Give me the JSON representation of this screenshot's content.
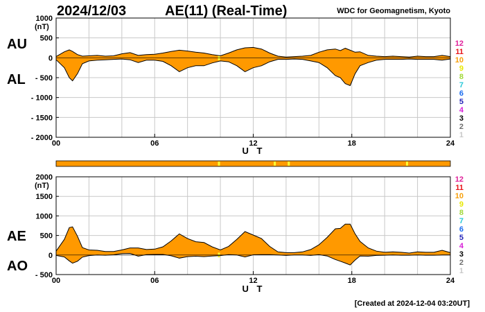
{
  "header": {
    "date": "2024/12/03",
    "title": "AE(11) (Real-Time)",
    "source": "WDC for Geomagnetism, Kyoto",
    "created": "[Created at 2024-12-04 03:20UT]"
  },
  "scale": {
    "entries": [
      {
        "label": "12",
        "color": "#e0209a"
      },
      {
        "label": "11",
        "color": "#e8141a"
      },
      {
        "label": "10",
        "color": "#f7a00c"
      },
      {
        "label": "9",
        "color": "#e8e800"
      },
      {
        "label": "8",
        "color": "#a0d838"
      },
      {
        "label": "7",
        "color": "#28c8d8"
      },
      {
        "label": "6",
        "color": "#1a6cf0"
      },
      {
        "label": "5",
        "color": "#2424b8"
      },
      {
        "label": "4",
        "color": "#d820d8"
      },
      {
        "label": "3",
        "color": "#000000"
      },
      {
        "label": "2",
        "color": "#6e6e6e"
      },
      {
        "label": "1",
        "color": "#c8c8c8"
      }
    ]
  },
  "colors": {
    "fill": "#ff9900",
    "gap": "#ffff33",
    "grid": "#c8c8c8"
  },
  "chart_data": [
    {
      "type": "area",
      "name": "AU/AL",
      "upper_series": "AU",
      "lower_series": "AL",
      "unit_label": "(nT)",
      "xlabel": "U T",
      "x_ticks": [
        "00",
        "06",
        "12",
        "18",
        "24"
      ],
      "y_ticks": [
        "1000",
        "500",
        "0",
        "- 500",
        "- 1000",
        "- 1500",
        "- 2000"
      ],
      "xlim": [
        0,
        24
      ],
      "ylim": [
        -2000,
        1000
      ],
      "gaps": [
        9.85,
        9.95
      ],
      "hours": [
        0.0,
        0.5,
        0.8,
        1.0,
        1.3,
        1.6,
        2.0,
        2.5,
        3.0,
        3.5,
        4.0,
        4.5,
        5.0,
        5.5,
        6.0,
        6.5,
        7.0,
        7.5,
        8.0,
        8.5,
        9.0,
        9.5,
        10.0,
        10.5,
        11.0,
        11.5,
        12.0,
        12.5,
        13.0,
        13.5,
        14.0,
        14.5,
        15.0,
        15.5,
        16.0,
        16.5,
        17.0,
        17.3,
        17.6,
        17.9,
        18.2,
        18.5,
        19.0,
        19.5,
        20.0,
        20.5,
        21.0,
        21.5,
        22.0,
        22.5,
        23.0,
        23.5,
        24.0
      ],
      "AU": [
        30,
        150,
        200,
        160,
        80,
        40,
        50,
        60,
        40,
        50,
        100,
        130,
        60,
        80,
        90,
        120,
        160,
        190,
        170,
        140,
        120,
        80,
        50,
        120,
        200,
        250,
        260,
        220,
        120,
        40,
        20,
        30,
        40,
        60,
        140,
        200,
        220,
        180,
        240,
        190,
        140,
        150,
        60,
        40,
        30,
        40,
        30,
        20,
        40,
        30,
        30,
        60,
        30
      ],
      "AL": [
        -50,
        -250,
        -500,
        -580,
        -400,
        -150,
        -80,
        -60,
        -50,
        -40,
        -30,
        -50,
        -120,
        -60,
        -60,
        -90,
        -200,
        -350,
        -250,
        -200,
        -200,
        -130,
        -80,
        -100,
        -200,
        -350,
        -250,
        -200,
        -100,
        -40,
        -40,
        -30,
        -40,
        -80,
        -120,
        -250,
        -450,
        -500,
        -650,
        -700,
        -400,
        -200,
        -120,
        -60,
        -40,
        -40,
        -40,
        -30,
        -40,
        -40,
        -40,
        -60,
        -30
      ]
    },
    {
      "type": "area",
      "name": "AE/AO",
      "upper_series": "AE",
      "lower_series": "AO",
      "unit_label": "(nT)",
      "xlabel": "U T",
      "x_ticks": [
        "00",
        "06",
        "12",
        "18",
        "24"
      ],
      "y_ticks": [
        "2000",
        "1500",
        "1000",
        "500",
        "0",
        "- 500"
      ],
      "xlim": [
        0,
        24
      ],
      "ylim": [
        -500,
        2000
      ],
      "gaps": [
        9.85,
        9.95
      ],
      "hours": [
        0.0,
        0.5,
        0.8,
        1.0,
        1.3,
        1.6,
        2.0,
        2.5,
        3.0,
        3.5,
        4.0,
        4.5,
        5.0,
        5.5,
        6.0,
        6.5,
        7.0,
        7.5,
        8.0,
        8.5,
        9.0,
        9.5,
        10.0,
        10.5,
        11.0,
        11.5,
        12.0,
        12.5,
        13.0,
        13.5,
        14.0,
        14.5,
        15.0,
        15.5,
        16.0,
        16.5,
        17.0,
        17.3,
        17.6,
        17.9,
        18.2,
        18.5,
        19.0,
        19.5,
        20.0,
        20.5,
        21.0,
        21.5,
        22.0,
        22.5,
        23.0,
        23.5,
        24.0
      ],
      "AE": [
        100,
        400,
        700,
        720,
        480,
        190,
        130,
        120,
        90,
        90,
        130,
        180,
        180,
        140,
        150,
        210,
        360,
        540,
        420,
        340,
        320,
        210,
        130,
        220,
        400,
        600,
        510,
        420,
        220,
        80,
        60,
        60,
        80,
        140,
        260,
        450,
        670,
        680,
        790,
        790,
        540,
        350,
        180,
        100,
        70,
        80,
        70,
        50,
        80,
        70,
        70,
        120,
        60
      ],
      "AO": [
        -10,
        -50,
        -150,
        -210,
        -160,
        -55,
        -15,
        0,
        -5,
        5,
        35,
        40,
        -30,
        10,
        15,
        15,
        -20,
        -80,
        -40,
        -30,
        -40,
        -25,
        -15,
        10,
        0,
        -50,
        5,
        10,
        10,
        0,
        -10,
        0,
        0,
        -10,
        10,
        -25,
        -115,
        -160,
        -205,
        -255,
        -130,
        -25,
        -30,
        -10,
        -5,
        0,
        -5,
        -5,
        0,
        -5,
        -5,
        0,
        0
      ]
    }
  ],
  "quality_bar": {
    "gaps": [
      9.85,
      9.95,
      13.25,
      13.3,
      14.1,
      14.2,
      21.3,
      21.4
    ]
  },
  "labels": {
    "top_upper": "AU",
    "top_lower": "AL",
    "bottom_upper": "AE",
    "bottom_lower": "AO"
  }
}
